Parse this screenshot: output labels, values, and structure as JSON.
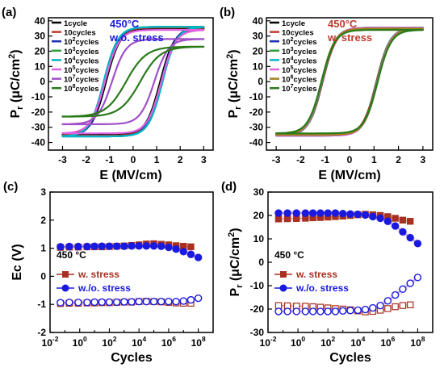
{
  "chart_data": [
    {
      "panel_label": "(a)",
      "type": "line",
      "annotation_lines": [
        "450°C",
        "w.o. stress"
      ],
      "annotation_colors": [
        "#1a1adf",
        "#1a1adf"
      ],
      "xlabel": "E (MV/cm)",
      "ylabel_main": "P",
      "ylabel_sub": "r",
      "ylabel_unit": " (μC/cm",
      "ylabel_sup": "2",
      "ylabel_close": ")",
      "xlim": [
        -3.6,
        3.4
      ],
      "ylim": [
        -45,
        42
      ],
      "xticks": [
        -3,
        -2,
        -1,
        0,
        1,
        2,
        3
      ],
      "yticks": [
        -40,
        -30,
        -20,
        -10,
        0,
        10,
        20,
        30,
        40
      ],
      "legend_position": "top-left",
      "series": [
        {
          "base": "1cycle",
          "sup": "",
          "tail": "",
          "color": "#000000",
          "ec": 1.15,
          "pr": 8,
          "pmax": 35,
          "s": 0.6
        },
        {
          "base": "10cycles",
          "sup": "",
          "tail": "",
          "color": "#c0392b",
          "ec": 1.2,
          "pr": 9,
          "pmax": 35.5,
          "s": 0.6
        },
        {
          "base": "10",
          "sup": "2",
          "tail": "cycles",
          "color": "#1a2fb4",
          "ec": 1.2,
          "pr": 10,
          "pmax": 36,
          "s": 0.6
        },
        {
          "base": "10",
          "sup": "3",
          "tail": "cycles",
          "color": "#2e9e3a",
          "ec": 1.25,
          "pr": 11,
          "pmax": 36,
          "s": 0.6
        },
        {
          "base": "10",
          "sup": "4",
          "tail": "cycles",
          "color": "#00b5c8",
          "ec": 1.25,
          "pr": 12,
          "pmax": 36,
          "s": 0.6
        },
        {
          "base": "10",
          "sup": "5",
          "tail": "cycles",
          "color": "#e060e0",
          "ec": 1.2,
          "pr": 12,
          "pmax": 34,
          "s": 0.6
        },
        {
          "base": "10",
          "sup": "7",
          "tail": "cycles",
          "color": "#a050c8",
          "ec": 0.9,
          "pr": 7,
          "pmax": 28,
          "s": 0.6
        },
        {
          "base": "10",
          "sup": "8",
          "tail": "cycles",
          "color": "#2a7a1a",
          "ec": 0.3,
          "pr": 2,
          "pmax": 23,
          "s": 0.85
        }
      ]
    },
    {
      "panel_label": "(b)",
      "type": "line",
      "annotation_lines": [
        "450°C",
        "w. stress"
      ],
      "annotation_colors": [
        "#c0392b",
        "#c0392b"
      ],
      "xlabel": "E (MV/cm)",
      "ylabel_main": "P",
      "ylabel_sub": "r",
      "ylabel_unit": " (μC/cm",
      "ylabel_sup": "2",
      "ylabel_close": ")",
      "xlim": [
        -3.4,
        3.4
      ],
      "ylim": [
        -45,
        42
      ],
      "xticks": [
        -3,
        -2,
        -1,
        0,
        1,
        2,
        3
      ],
      "yticks": [
        -40,
        -30,
        -20,
        -10,
        0,
        10,
        20,
        30,
        40
      ],
      "legend_position": "top-left",
      "series": [
        {
          "base": "1cycle",
          "sup": "",
          "tail": "",
          "color": "#000000",
          "ec": 1.1,
          "pr": 21,
          "pmax": 35,
          "s": 0.55
        },
        {
          "base": "10cycles",
          "sup": "",
          "tail": "",
          "color": "#c0392b",
          "ec": 1.1,
          "pr": 21,
          "pmax": 35,
          "s": 0.55
        },
        {
          "base": "10",
          "sup": "2",
          "tail": "cycles",
          "color": "#1a2fb4",
          "ec": 1.12,
          "pr": 21,
          "pmax": 35.5,
          "s": 0.55
        },
        {
          "base": "10",
          "sup": "3",
          "tail": "cycles",
          "color": "#2e9e3a",
          "ec": 1.12,
          "pr": 21.5,
          "pmax": 35.5,
          "s": 0.55
        },
        {
          "base": "10",
          "sup": "4",
          "tail": "cycles",
          "color": "#00b5c8",
          "ec": 1.14,
          "pr": 21.5,
          "pmax": 35.5,
          "s": 0.55
        },
        {
          "base": "10",
          "sup": "5",
          "tail": "cycles",
          "color": "#e060e0",
          "ec": 1.14,
          "pr": 21.5,
          "pmax": 35.5,
          "s": 0.55
        },
        {
          "base": "10",
          "sup": "6",
          "tail": "cycles",
          "color": "#a08020",
          "ec": 1.15,
          "pr": 21,
          "pmax": 35,
          "s": 0.55
        },
        {
          "base": "10",
          "sup": "7",
          "tail": "cycles",
          "color": "#2a7a1a",
          "ec": 1.15,
          "pr": 21,
          "pmax": 34,
          "s": 0.55
        }
      ]
    },
    {
      "panel_label": "(c)",
      "type": "scatter",
      "annotation_lines": [
        "450 °C"
      ],
      "annotation_colors": [
        "#000000"
      ],
      "xlabel": "Cycles",
      "ylabel_main": "Ec (V)",
      "xscale": "log",
      "xlim_exp": [
        -2,
        9
      ],
      "ylim": [
        -2,
        3
      ],
      "xtick_exps": [
        -2,
        0,
        2,
        4,
        6,
        8
      ],
      "yticks": [
        -2,
        -1,
        0,
        1,
        2,
        3
      ],
      "legend_position": "center-left",
      "x_exps": [
        -1.3,
        -0.7,
        -0.1,
        0.5,
        1.0,
        1.5,
        2.0,
        2.5,
        3.0,
        3.5,
        4.0,
        4.5,
        5.0,
        5.5,
        6.0,
        6.5,
        7.0,
        7.5,
        8.0
      ],
      "series": [
        {
          "name": "w. stress",
          "color": "#a83020",
          "marker": "square",
          "pos": [
            1.03,
            1.04,
            1.04,
            1.05,
            1.05,
            1.05,
            1.06,
            1.07,
            1.08,
            1.1,
            1.12,
            1.15,
            1.16,
            1.14,
            1.12,
            1.09,
            1.07,
            1.05,
            null
          ],
          "neg": [
            -0.97,
            -0.96,
            -0.96,
            -0.95,
            -0.95,
            -0.94,
            -0.94,
            -0.93,
            -0.92,
            -0.92,
            -0.9,
            -0.89,
            -0.9,
            -0.91,
            -0.93,
            -0.95,
            -0.96,
            -0.96,
            null
          ]
        },
        {
          "name": "w./o. stress",
          "color": "#1a1adf",
          "marker": "circle",
          "pos": [
            1.05,
            1.06,
            1.06,
            1.06,
            1.07,
            1.07,
            1.07,
            1.07,
            1.07,
            1.08,
            1.08,
            1.08,
            1.08,
            1.07,
            1.03,
            0.97,
            0.88,
            0.78,
            0.67
          ],
          "neg": [
            -0.94,
            -0.93,
            -0.93,
            -0.93,
            -0.92,
            -0.92,
            -0.92,
            -0.92,
            -0.91,
            -0.91,
            -0.9,
            -0.9,
            -0.9,
            -0.9,
            -0.9,
            -0.9,
            -0.88,
            -0.84,
            -0.78
          ]
        }
      ]
    },
    {
      "panel_label": "(d)",
      "type": "scatter",
      "annotation_lines": [
        "450 °C"
      ],
      "annotation_colors": [
        "#000000"
      ],
      "xlabel": "Cycles",
      "ylabel_main": "P",
      "ylabel_sub": "r",
      "ylabel_unit": " (μC/cm",
      "ylabel_sup": "2",
      "ylabel_close": ")",
      "xscale": "log",
      "xlim_exp": [
        -2,
        9
      ],
      "ylim": [
        -30,
        30
      ],
      "xtick_exps": [
        -2,
        0,
        2,
        4,
        6,
        8
      ],
      "yticks": [
        -30,
        -20,
        -10,
        0,
        10,
        20,
        30
      ],
      "legend_position": "center-left",
      "x_exps": [
        -1.3,
        -0.7,
        -0.1,
        0.5,
        1.0,
        1.5,
        2.0,
        2.5,
        3.0,
        3.5,
        4.0,
        4.5,
        5.0,
        5.5,
        6.0,
        6.5,
        7.0,
        7.5,
        8.0
      ],
      "series": [
        {
          "name": "w. stress",
          "color": "#a83020",
          "marker": "square",
          "pos": [
            18.5,
            18.6,
            18.7,
            18.8,
            19.0,
            19.1,
            19.3,
            19.5,
            19.7,
            20.0,
            20.3,
            20.5,
            20.3,
            20.0,
            19.5,
            18.8,
            18.0,
            17.5,
            null
          ],
          "neg": [
            -18.5,
            -18.6,
            -18.7,
            -18.8,
            -19.0,
            -19.2,
            -19.5,
            -19.8,
            -20.0,
            -20.3,
            -20.8,
            -21.2,
            -21.0,
            -20.5,
            -19.8,
            -19.0,
            -18.5,
            -18.2,
            null
          ]
        },
        {
          "name": "w./o. stress",
          "color": "#1a1adf",
          "marker": "circle",
          "pos": [
            21.0,
            21.0,
            21.0,
            21.0,
            21.0,
            21.0,
            21.0,
            21.0,
            20.8,
            20.6,
            20.5,
            20.2,
            19.5,
            18.8,
            17.5,
            15.5,
            13.0,
            10.5,
            8.0
          ],
          "neg": [
            -21.0,
            -21.0,
            -21.0,
            -21.0,
            -21.0,
            -21.0,
            -21.0,
            -21.0,
            -20.8,
            -20.6,
            -20.5,
            -20.2,
            -19.5,
            -18.5,
            -16.5,
            -14.0,
            -11.5,
            -9.0,
            -6.5
          ]
        }
      ]
    }
  ]
}
